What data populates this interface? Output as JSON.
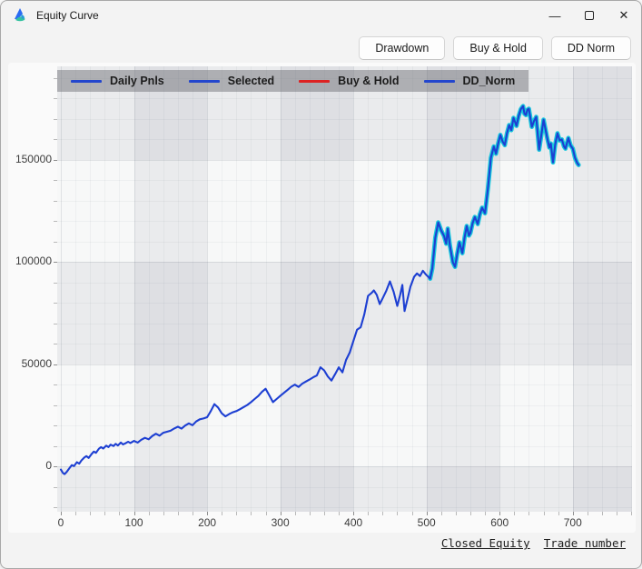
{
  "window": {
    "title": "Equity Curve",
    "controls": {
      "minimize": "—",
      "close": "✕"
    }
  },
  "toolbar": {
    "buttons": [
      {
        "label": "Drawdown"
      },
      {
        "label": "Buy & Hold"
      },
      {
        "label": "DD Norm"
      }
    ]
  },
  "legend": {
    "items": [
      {
        "label": "Daily Pnls",
        "color": "#2346cd"
      },
      {
        "label": "Selected",
        "color": "#2346cd"
      },
      {
        "label": "Buy & Hold",
        "color": "#dd2222"
      },
      {
        "label": "DD_Norm",
        "color": "#2346cd"
      }
    ]
  },
  "axis_links": {
    "y_axis_label": "Closed Equity",
    "x_axis_label": "Trade number"
  },
  "chart_data": {
    "type": "line",
    "title": "Equity Curve",
    "xlabel": "Trade number",
    "ylabel": "Closed Equity",
    "x_ticks": [
      0,
      100,
      200,
      300,
      400,
      500,
      600,
      700
    ],
    "y_ticks": [
      0,
      50000,
      100000,
      150000
    ],
    "x_range": [
      -5,
      781
    ],
    "y_range": [
      -22100,
      195600
    ],
    "x_minor_step": 20,
    "y_minor_step": 10000,
    "bands_x": [
      [
        100,
        200
      ],
      [
        300,
        400
      ],
      [
        500,
        600
      ],
      [
        700,
        781
      ]
    ],
    "bands_y": [
      [
        150000,
        195600
      ],
      [
        50000,
        100000
      ],
      [
        -22100,
        0
      ]
    ],
    "legend_position": "top-left",
    "grid": true,
    "colors": {
      "line": "#1d3fd2",
      "selected_halo": "#17c8dc",
      "buy_hold": "#dd2222"
    },
    "selected_from": 505,
    "series": [
      {
        "name": "Daily Pnls",
        "points": [
          [
            0,
            -1500
          ],
          [
            3,
            -3200
          ],
          [
            5,
            -3700
          ],
          [
            8,
            -2600
          ],
          [
            12,
            -700
          ],
          [
            15,
            700
          ],
          [
            18,
            200
          ],
          [
            22,
            2100
          ],
          [
            25,
            1400
          ],
          [
            28,
            2900
          ],
          [
            32,
            4400
          ],
          [
            35,
            5100
          ],
          [
            38,
            4200
          ],
          [
            42,
            6100
          ],
          [
            45,
            7300
          ],
          [
            48,
            6700
          ],
          [
            52,
            8700
          ],
          [
            55,
            9500
          ],
          [
            58,
            8800
          ],
          [
            62,
            10200
          ],
          [
            65,
            9500
          ],
          [
            68,
            10700
          ],
          [
            72,
            10000
          ],
          [
            75,
            11100
          ],
          [
            78,
            10300
          ],
          [
            82,
            11700
          ],
          [
            85,
            10800
          ],
          [
            88,
            11300
          ],
          [
            92,
            12100
          ],
          [
            95,
            11500
          ],
          [
            100,
            12500
          ],
          [
            105,
            11700
          ],
          [
            110,
            13100
          ],
          [
            115,
            14000
          ],
          [
            120,
            13300
          ],
          [
            125,
            14900
          ],
          [
            130,
            16000
          ],
          [
            135,
            15100
          ],
          [
            140,
            16500
          ],
          [
            145,
            17000
          ],
          [
            150,
            17500
          ],
          [
            155,
            18600
          ],
          [
            160,
            19500
          ],
          [
            165,
            18500
          ],
          [
            170,
            20000
          ],
          [
            175,
            21100
          ],
          [
            180,
            20200
          ],
          [
            185,
            22000
          ],
          [
            190,
            23100
          ],
          [
            195,
            23500
          ],
          [
            200,
            24100
          ],
          [
            205,
            27100
          ],
          [
            210,
            30500
          ],
          [
            215,
            28800
          ],
          [
            220,
            26000
          ],
          [
            225,
            24500
          ],
          [
            230,
            25600
          ],
          [
            235,
            26500
          ],
          [
            240,
            27100
          ],
          [
            245,
            28000
          ],
          [
            250,
            29100
          ],
          [
            255,
            30100
          ],
          [
            260,
            31500
          ],
          [
            265,
            33000
          ],
          [
            270,
            34500
          ],
          [
            275,
            36500
          ],
          [
            280,
            38000
          ],
          [
            285,
            34800
          ],
          [
            290,
            31500
          ],
          [
            295,
            33000
          ],
          [
            300,
            34500
          ],
          [
            305,
            36000
          ],
          [
            310,
            37500
          ],
          [
            315,
            39000
          ],
          [
            320,
            40000
          ],
          [
            325,
            38900
          ],
          [
            330,
            40500
          ],
          [
            335,
            41500
          ],
          [
            340,
            42500
          ],
          [
            345,
            43600
          ],
          [
            350,
            44500
          ],
          [
            355,
            48500
          ],
          [
            360,
            47000
          ],
          [
            365,
            44000
          ],
          [
            370,
            42000
          ],
          [
            375,
            45100
          ],
          [
            380,
            48500
          ],
          [
            385,
            46000
          ],
          [
            390,
            52100
          ],
          [
            395,
            55700
          ],
          [
            400,
            61400
          ],
          [
            405,
            66900
          ],
          [
            410,
            68100
          ],
          [
            415,
            74400
          ],
          [
            420,
            83400
          ],
          [
            425,
            84900
          ],
          [
            428,
            86100
          ],
          [
            432,
            83900
          ],
          [
            436,
            79400
          ],
          [
            440,
            82200
          ],
          [
            445,
            85900
          ],
          [
            450,
            90500
          ],
          [
            455,
            85400
          ],
          [
            460,
            78500
          ],
          [
            464,
            83900
          ],
          [
            467,
            88800
          ],
          [
            470,
            76000
          ],
          [
            474,
            81900
          ],
          [
            478,
            87900
          ],
          [
            483,
            92700
          ],
          [
            487,
            94400
          ],
          [
            491,
            93100
          ],
          [
            495,
            95700
          ],
          [
            499,
            93900
          ],
          [
            502,
            92900
          ],
          [
            505,
            91800
          ],
          [
            508,
            96900
          ],
          [
            512,
            111900
          ],
          [
            516,
            119300
          ],
          [
            520,
            115400
          ],
          [
            524,
            112700
          ],
          [
            527,
            108900
          ],
          [
            529,
            116300
          ],
          [
            532,
            107900
          ],
          [
            536,
            99800
          ],
          [
            539,
            97600
          ],
          [
            542,
            103900
          ],
          [
            545,
            109600
          ],
          [
            549,
            104300
          ],
          [
            552,
            111900
          ],
          [
            555,
            117600
          ],
          [
            558,
            112900
          ],
          [
            560,
            114100
          ],
          [
            563,
            118900
          ],
          [
            566,
            122000
          ],
          [
            570,
            118500
          ],
          [
            573,
            123400
          ],
          [
            576,
            126500
          ],
          [
            580,
            123800
          ],
          [
            584,
            135900
          ],
          [
            588,
            150900
          ],
          [
            592,
            156400
          ],
          [
            595,
            152900
          ],
          [
            598,
            157900
          ],
          [
            601,
            162100
          ],
          [
            604,
            158900
          ],
          [
            607,
            157100
          ],
          [
            610,
            162900
          ],
          [
            613,
            166900
          ],
          [
            616,
            164400
          ],
          [
            619,
            170400
          ],
          [
            623,
            166500
          ],
          [
            626,
            171400
          ],
          [
            629,
            174700
          ],
          [
            632,
            176200
          ],
          [
            634,
            172400
          ],
          [
            636,
            171800
          ],
          [
            638,
            174400
          ],
          [
            640,
            174900
          ],
          [
            644,
            166000
          ],
          [
            647,
            168900
          ],
          [
            650,
            170900
          ],
          [
            654,
            154900
          ],
          [
            657,
            161900
          ],
          [
            660,
            169500
          ],
          [
            665,
            160600
          ],
          [
            668,
            155900
          ],
          [
            670,
            157900
          ],
          [
            673,
            148700
          ],
          [
            676,
            157400
          ],
          [
            679,
            162900
          ],
          [
            682,
            159400
          ],
          [
            685,
            159900
          ],
          [
            688,
            156400
          ],
          [
            690,
            155400
          ],
          [
            694,
            160600
          ],
          [
            697,
            156900
          ],
          [
            700,
            155400
          ],
          [
            703,
            150900
          ],
          [
            706,
            148400
          ],
          [
            708,
            147400
          ]
        ]
      },
      {
        "name": "Selected",
        "note": "highlight of Daily Pnls from trade 505 to end"
      },
      {
        "name": "Buy & Hold",
        "visible": false,
        "points": []
      },
      {
        "name": "DD_Norm",
        "visible": false,
        "points": []
      }
    ]
  }
}
